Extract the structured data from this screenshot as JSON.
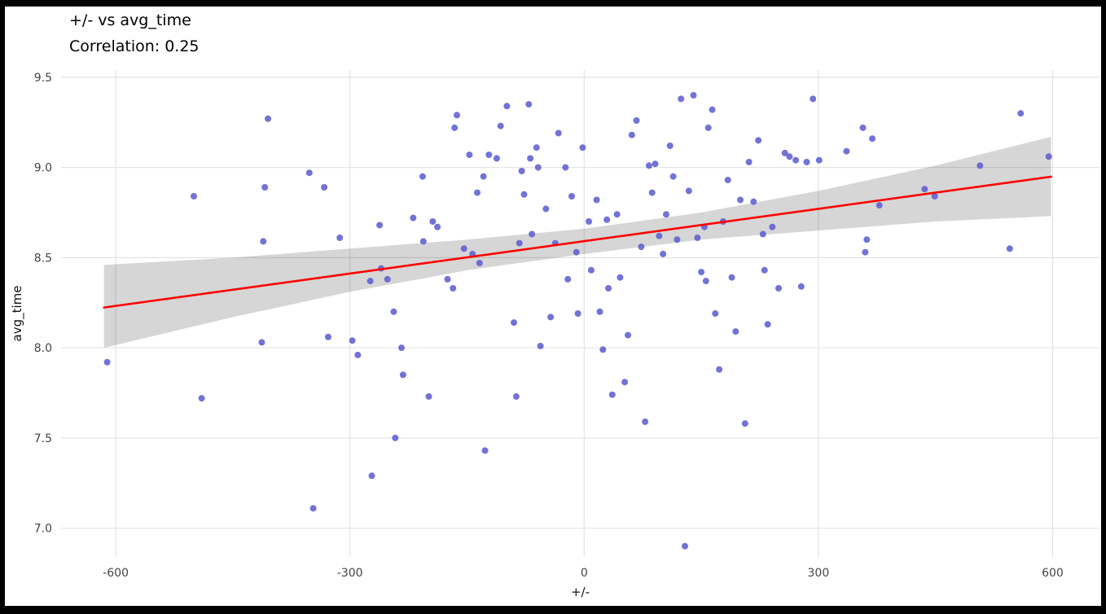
{
  "frame": {
    "bg": "#000000",
    "panel_bg": "#ffffff"
  },
  "chart_data": {
    "type": "scatter",
    "title": "+/- vs avg_time",
    "subtitle": "Correlation: 0.25",
    "correlation": 0.25,
    "xlabel": "+/-",
    "ylabel": "avg_time",
    "xlim": [
      -670,
      660
    ],
    "ylim": [
      6.84,
      9.54
    ],
    "x_ticks": [
      -600,
      -300,
      0,
      300,
      600
    ],
    "y_ticks": [
      7.0,
      7.5,
      8.0,
      8.5,
      9.0,
      9.5
    ],
    "grid": true,
    "grid_color": "#e4e4e4",
    "tick_label_color": "#444444",
    "point_color": "#5e5ed1",
    "trend_color": "#ff0000",
    "ribbon_color": "rgba(0,0,0,0.16)",
    "trend": {
      "x_start": -615,
      "x_end": 598,
      "intercept": 8.591,
      "slope": 0.000598
    },
    "ribbon": [
      {
        "x": -615,
        "lo": 8.0,
        "hi": 8.46
      },
      {
        "x": -450,
        "lo": 8.17,
        "hi": 8.5
      },
      {
        "x": -300,
        "lo": 8.31,
        "hi": 8.55
      },
      {
        "x": -150,
        "lo": 8.43,
        "hi": 8.6
      },
      {
        "x": 0,
        "lo": 8.52,
        "hi": 8.66
      },
      {
        "x": 150,
        "lo": 8.6,
        "hi": 8.75
      },
      {
        "x": 300,
        "lo": 8.65,
        "hi": 8.87
      },
      {
        "x": 450,
        "lo": 8.7,
        "hi": 9.01
      },
      {
        "x": 598,
        "lo": 8.73,
        "hi": 9.17
      }
    ],
    "points": [
      [
        -611,
        7.92
      ],
      [
        -500,
        8.84
      ],
      [
        -490,
        7.72
      ],
      [
        -405,
        9.27
      ],
      [
        -409,
        8.89
      ],
      [
        -411,
        8.59
      ],
      [
        -413,
        8.03
      ],
      [
        -352,
        8.97
      ],
      [
        -347,
        7.11
      ],
      [
        -333,
        8.89
      ],
      [
        -328,
        8.06
      ],
      [
        -313,
        8.61
      ],
      [
        -297,
        8.04
      ],
      [
        -290,
        7.96
      ],
      [
        -274,
        8.37
      ],
      [
        -272,
        7.29
      ],
      [
        -262,
        8.68
      ],
      [
        -260,
        8.44
      ],
      [
        -252,
        8.38
      ],
      [
        -244,
        8.2
      ],
      [
        -242,
        7.5
      ],
      [
        -234,
        8.0
      ],
      [
        -232,
        7.85
      ],
      [
        -219,
        8.72
      ],
      [
        -207,
        8.95
      ],
      [
        -206,
        8.59
      ],
      [
        -199,
        7.73
      ],
      [
        -194,
        8.7
      ],
      [
        -188,
        8.67
      ],
      [
        -175,
        8.38
      ],
      [
        -168,
        8.33
      ],
      [
        -166,
        9.22
      ],
      [
        -163,
        9.29
      ],
      [
        -154,
        8.55
      ],
      [
        -147,
        9.07
      ],
      [
        -143,
        8.52
      ],
      [
        -137,
        8.86
      ],
      [
        -134,
        8.47
      ],
      [
        -129,
        8.95
      ],
      [
        -127,
        7.43
      ],
      [
        -122,
        9.07
      ],
      [
        -112,
        9.05
      ],
      [
        -107,
        9.23
      ],
      [
        -99,
        9.34
      ],
      [
        -90,
        8.14
      ],
      [
        -87,
        7.73
      ],
      [
        -83,
        8.58
      ],
      [
        -80,
        8.98
      ],
      [
        -77,
        8.85
      ],
      [
        -71,
        9.35
      ],
      [
        -69,
        9.05
      ],
      [
        -67,
        8.63
      ],
      [
        -61,
        9.11
      ],
      [
        -59,
        9.0
      ],
      [
        -56,
        8.01
      ],
      [
        -49,
        8.77
      ],
      [
        -43,
        8.17
      ],
      [
        -37,
        8.58
      ],
      [
        -33,
        9.19
      ],
      [
        -24,
        9.0
      ],
      [
        -21,
        8.38
      ],
      [
        -16,
        8.84
      ],
      [
        -10,
        8.53
      ],
      [
        -8,
        8.19
      ],
      [
        -2,
        9.11
      ],
      [
        6,
        8.7
      ],
      [
        9,
        8.43
      ],
      [
        16,
        8.82
      ],
      [
        20,
        8.2
      ],
      [
        24,
        7.99
      ],
      [
        29,
        8.71
      ],
      [
        31,
        8.33
      ],
      [
        36,
        7.74
      ],
      [
        42,
        8.74
      ],
      [
        46,
        8.39
      ],
      [
        52,
        7.81
      ],
      [
        56,
        8.07
      ],
      [
        61,
        9.18
      ],
      [
        67,
        9.26
      ],
      [
        73,
        8.56
      ],
      [
        78,
        7.59
      ],
      [
        83,
        9.01
      ],
      [
        87,
        8.86
      ],
      [
        91,
        9.02
      ],
      [
        96,
        8.62
      ],
      [
        101,
        8.52
      ],
      [
        105,
        8.74
      ],
      [
        110,
        9.12
      ],
      [
        114,
        8.95
      ],
      [
        119,
        8.6
      ],
      [
        124,
        9.38
      ],
      [
        129,
        6.9
      ],
      [
        134,
        8.87
      ],
      [
        140,
        9.4
      ],
      [
        145,
        8.61
      ],
      [
        150,
        8.42
      ],
      [
        154,
        8.67
      ],
      [
        156,
        8.37
      ],
      [
        159,
        9.22
      ],
      [
        164,
        9.32
      ],
      [
        168,
        8.19
      ],
      [
        173,
        7.88
      ],
      [
        178,
        8.7
      ],
      [
        184,
        8.93
      ],
      [
        189,
        8.39
      ],
      [
        194,
        8.09
      ],
      [
        200,
        8.82
      ],
      [
        206,
        7.58
      ],
      [
        211,
        9.03
      ],
      [
        217,
        8.81
      ],
      [
        223,
        9.15
      ],
      [
        229,
        8.63
      ],
      [
        231,
        8.43
      ],
      [
        235,
        8.13
      ],
      [
        241,
        8.67
      ],
      [
        249,
        8.33
      ],
      [
        257,
        9.08
      ],
      [
        263,
        9.06
      ],
      [
        271,
        9.04
      ],
      [
        278,
        8.34
      ],
      [
        285,
        9.03
      ],
      [
        293,
        9.38
      ],
      [
        301,
        9.04
      ],
      [
        336,
        9.09
      ],
      [
        357,
        9.22
      ],
      [
        360,
        8.53
      ],
      [
        362,
        8.6
      ],
      [
        369,
        9.16
      ],
      [
        378,
        8.79
      ],
      [
        436,
        8.88
      ],
      [
        449,
        8.84
      ],
      [
        507,
        9.01
      ],
      [
        545,
        8.55
      ],
      [
        559,
        9.3
      ],
      [
        595,
        9.06
      ]
    ]
  }
}
